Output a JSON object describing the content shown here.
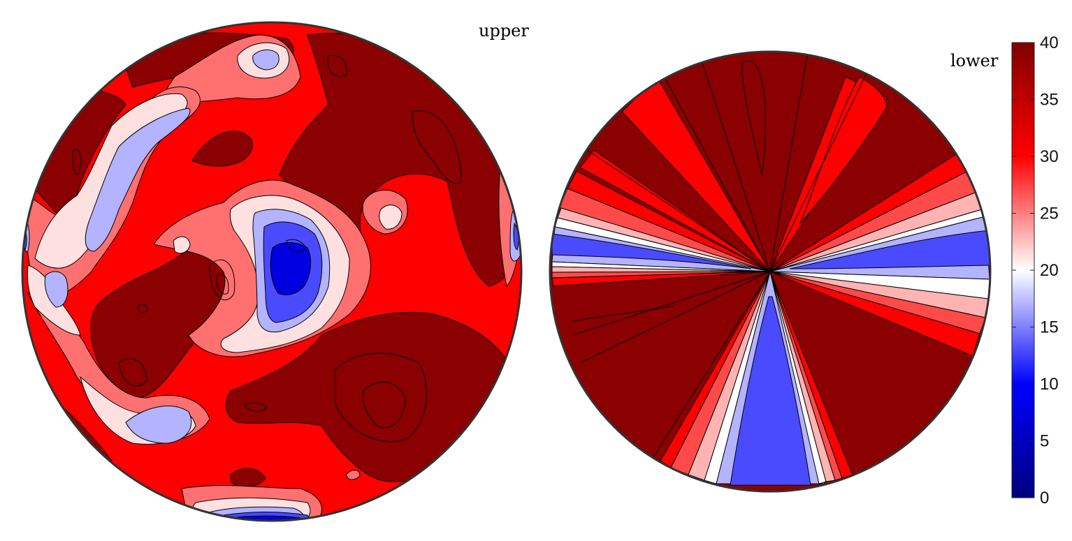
{
  "chart_data": {
    "type": "filled-contour",
    "panels": [
      {
        "label": "upper",
        "description_levels": [
          0,
          5,
          10,
          15,
          20,
          25,
          30,
          35,
          40
        ]
      },
      {
        "label": "lower",
        "description_levels": [
          0,
          5,
          10,
          15,
          20,
          25,
          30,
          35,
          40
        ]
      }
    ],
    "colorbar": {
      "ticks": [
        0,
        5,
        10,
        15,
        20,
        25,
        30,
        35,
        40
      ],
      "tick_labels": [
        "0",
        "5",
        "10",
        "15",
        "20",
        "25",
        "30",
        "35",
        "40"
      ],
      "range": [
        0,
        40
      ],
      "colormap": "blue-white-red (diverging)"
    },
    "colors": {
      "level_0_5": "#00007f",
      "level_5_10": "#0000e0",
      "level_10_15": "#4a4aff",
      "level_15_20": "#b3b3ff",
      "level_20_25": "#ffe0e0",
      "level_25_30": "#ff7070",
      "level_30_35": "#ff0000",
      "level_35_40": "#8b0000"
    }
  }
}
